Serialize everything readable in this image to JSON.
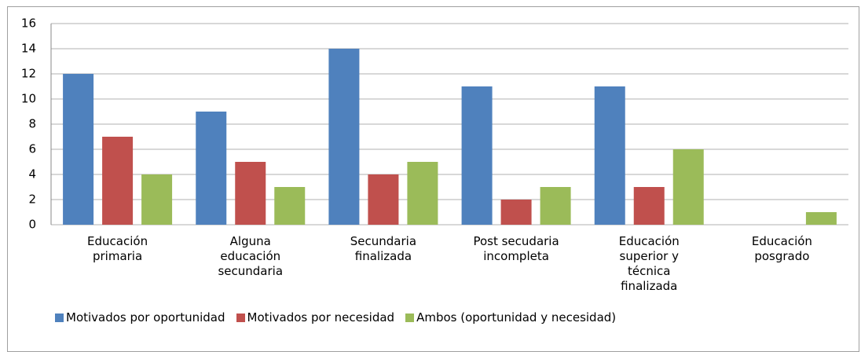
{
  "chart_data": {
    "type": "bar",
    "categories": [
      "Educación primaria",
      "Alguna educación secundaria",
      "Secundaria finalizada",
      "Post secudaria incompleta",
      "Educación superior y técnica finalizada",
      "Educación posgrado"
    ],
    "series": [
      {
        "name": "Motivados por oportunidad",
        "color": "#4f81bd",
        "values": [
          12,
          9,
          14,
          11,
          11,
          0
        ]
      },
      {
        "name": "Motivados por necesidad",
        "color": "#c0504d",
        "values": [
          7,
          5,
          4,
          2,
          3,
          0
        ]
      },
      {
        "name": "Ambos (oportunidad y necesidad)",
        "color": "#9bbb59",
        "values": [
          4,
          3,
          5,
          3,
          6,
          1
        ]
      }
    ],
    "ylim": [
      0,
      16
    ],
    "yticks": [
      0,
      2,
      4,
      6,
      8,
      10,
      12,
      14,
      16
    ],
    "grid": true,
    "legend": "bottom"
  }
}
